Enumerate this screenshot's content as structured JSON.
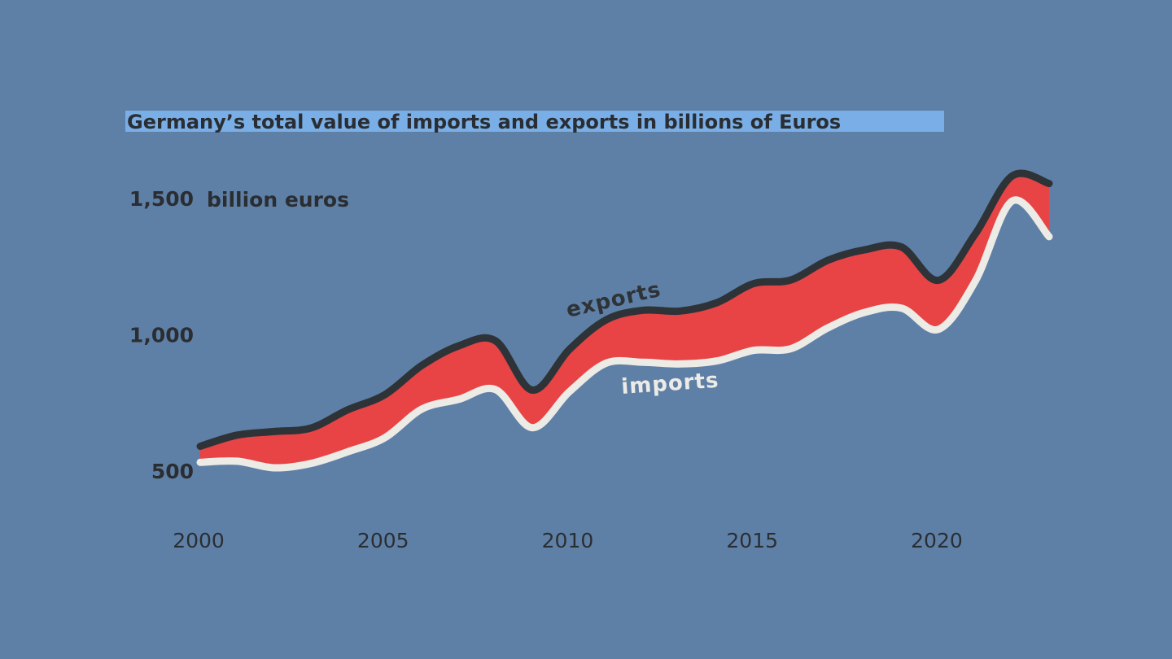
{
  "chart_data": {
    "type": "area",
    "title": "Germany’s total value of imports and exports in billions of Euros",
    "ylabel": "billion euros",
    "xlabel": "",
    "xlim": [
      2000,
      2023
    ],
    "ylim": [
      500,
      1700
    ],
    "x_ticks": [
      2000,
      2005,
      2010,
      2015,
      2020
    ],
    "y_ticks": [
      {
        "value": 500,
        "label": "500"
      },
      {
        "value": 1000,
        "label": "1,000"
      },
      {
        "value": 1500,
        "label": "1,500"
      }
    ],
    "grid": false,
    "legend": "inline labels on lines",
    "x": [
      2000,
      2001,
      2002,
      2003,
      2004,
      2005,
      2006,
      2007,
      2008,
      2009,
      2010,
      2011,
      2012,
      2013,
      2014,
      2015,
      2016,
      2017,
      2018,
      2019,
      2020,
      2021,
      2022,
      2023
    ],
    "series": [
      {
        "name": "exports",
        "color": "#2e3338",
        "values": [
          597,
          638,
          651,
          664,
          731,
          786,
          893,
          965,
          984,
          803,
          952,
          1061,
          1096,
          1093,
          1124,
          1194,
          1207,
          1279,
          1318,
          1328,
          1206,
          1376,
          1589,
          1561
        ]
      },
      {
        "name": "imports",
        "color": "#ecebe6",
        "values": [
          538,
          542,
          518,
          534,
          577,
          628,
          733,
          769,
          805,
          665,
          797,
          902,
          905,
          899,
          910,
          949,
          955,
          1031,
          1088,
          1104,
          1026,
          1203,
          1497,
          1366
        ]
      }
    ],
    "fill_between_color": "#e84345"
  }
}
